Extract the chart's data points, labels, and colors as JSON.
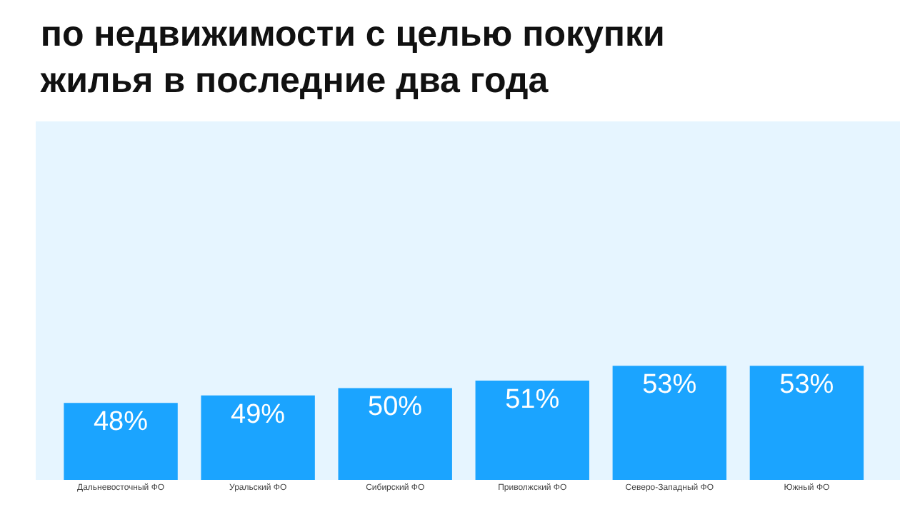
{
  "chart_data": {
    "type": "bar",
    "title": "по недвижимости с целью покупки\nжилья в последние два года",
    "categories": [
      "Дальневосточный ФО",
      "Уральский ФО",
      "Сибирский ФО",
      "Приволжский ФО",
      "Северо-Западный ФО",
      "Южный ФО"
    ],
    "values": [
      48,
      49,
      50,
      51,
      53,
      53
    ],
    "value_labels": [
      "48%",
      "49%",
      "50%",
      "51%",
      "53%",
      "53%"
    ],
    "color": "#1ba4ff",
    "ylim": [
      37.6,
      86
    ],
    "tick_labels": "x",
    "grid": false,
    "legend": false
  }
}
